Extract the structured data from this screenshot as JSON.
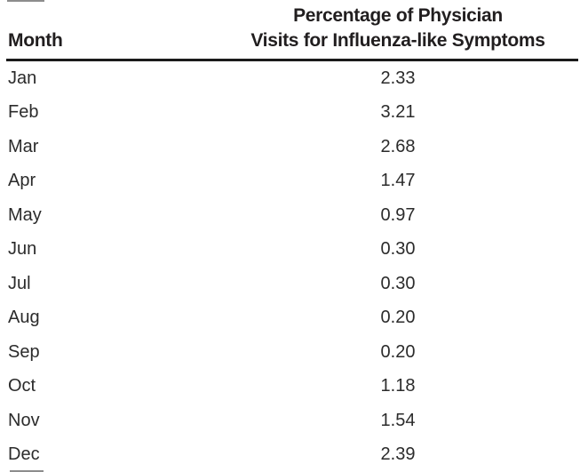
{
  "table": {
    "col1_header": "Month",
    "col2_header_line1": "Percentage of Physician",
    "col2_header_line2": "Visits for Influenza-like Symptoms",
    "rows": [
      {
        "month": "Jan",
        "value": "2.33"
      },
      {
        "month": "Feb",
        "value": "3.21"
      },
      {
        "month": "Mar",
        "value": "2.68"
      },
      {
        "month": "Apr",
        "value": "1.47"
      },
      {
        "month": "May",
        "value": "0.97"
      },
      {
        "month": "Jun",
        "value": "0.30"
      },
      {
        "month": "Jul",
        "value": "0.30"
      },
      {
        "month": "Aug",
        "value": "0.20"
      },
      {
        "month": "Sep",
        "value": "0.20"
      },
      {
        "month": "Oct",
        "value": "1.18"
      },
      {
        "month": "Nov",
        "value": "1.54"
      },
      {
        "month": "Dec",
        "value": "2.39"
      }
    ]
  },
  "chart_data": {
    "type": "table",
    "title": "Percentage of Physician Visits for Influenza-like Symptoms by Month",
    "columns": [
      "Month",
      "Percentage of Physician Visits for Influenza-like Symptoms"
    ],
    "categories": [
      "Jan",
      "Feb",
      "Mar",
      "Apr",
      "May",
      "Jun",
      "Jul",
      "Aug",
      "Sep",
      "Oct",
      "Nov",
      "Dec"
    ],
    "values": [
      2.33,
      3.21,
      2.68,
      1.47,
      0.97,
      0.3,
      0.3,
      0.2,
      0.2,
      1.18,
      1.54,
      2.39
    ]
  },
  "colors": {
    "text": "#211e1f",
    "data_text": "#2b2b2b",
    "header_rule": "#1b1b1b",
    "background": "#ffffff"
  }
}
